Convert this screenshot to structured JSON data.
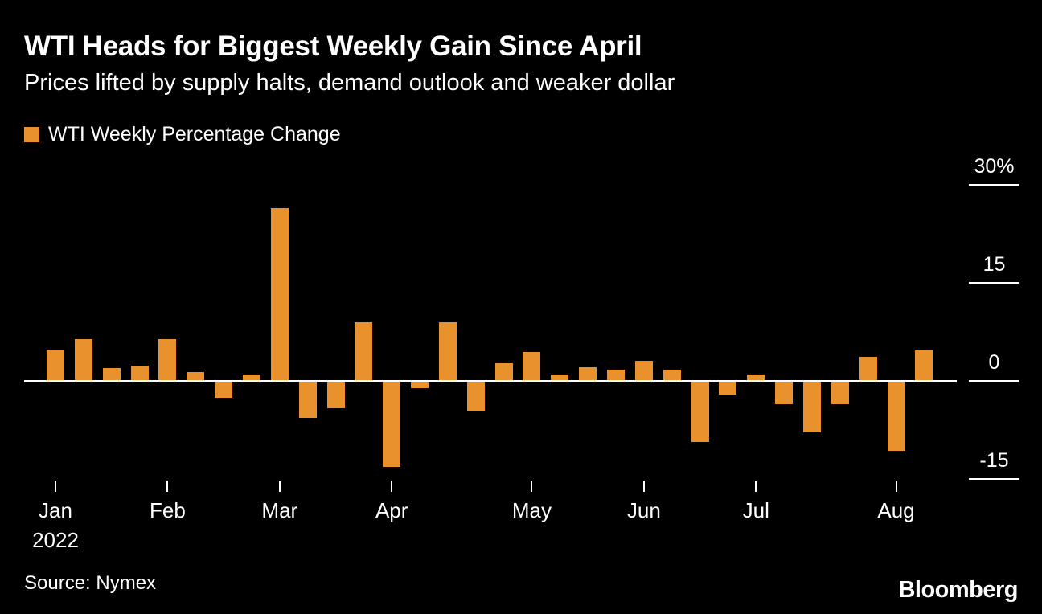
{
  "header": {
    "title": "WTI Heads for Biggest Weekly Gain Since April",
    "subtitle": "Prices lifted by supply halts, demand outlook and weaker dollar"
  },
  "legend": {
    "label": "WTI Weekly Percentage Change",
    "swatch_color": "#E8912D"
  },
  "chart_data": {
    "type": "bar",
    "title": "WTI Weekly Percentage Change",
    "unit": "percent",
    "series_name": "WTI Weekly Percentage Change",
    "values": [
      4.6,
      6.2,
      1.9,
      2.2,
      6.3,
      1.2,
      -2.4,
      0.8,
      26.3,
      -5.5,
      -4.0,
      8.8,
      -13.0,
      -1.0,
      8.8,
      -4.6,
      2.6,
      4.3,
      0.9,
      2.0,
      1.6,
      2.9,
      1.6,
      -9.2,
      -2.0,
      0.8,
      -3.4,
      -7.7,
      -3.4,
      3.5,
      -10.5,
      4.5
    ],
    "x_ticks": [
      {
        "label": "Jan",
        "sublabel": "2022",
        "week_index": 0
      },
      {
        "label": "Feb",
        "sublabel": "",
        "week_index": 4
      },
      {
        "label": "Mar",
        "sublabel": "",
        "week_index": 8
      },
      {
        "label": "Apr",
        "sublabel": "",
        "week_index": 12
      },
      {
        "label": "May",
        "sublabel": "",
        "week_index": 17
      },
      {
        "label": "Jun",
        "sublabel": "",
        "week_index": 21
      },
      {
        "label": "Jul",
        "sublabel": "",
        "week_index": 25
      },
      {
        "label": "Aug",
        "sublabel": "",
        "week_index": 30
      }
    ],
    "y_ticks": [
      {
        "label": "30%",
        "value": 30
      },
      {
        "label": "15",
        "value": 15
      },
      {
        "label": "0",
        "value": 0
      },
      {
        "label": "-15",
        "value": -15
      }
    ],
    "ylim": [
      -16,
      31
    ],
    "grid": "right-tick-segments",
    "legend_position": "top-left",
    "bar_color": "#E8912D",
    "background_color": "#000000",
    "text_color": "#FFFFFF"
  },
  "footer": {
    "source": "Source: Nymex",
    "brand": "Bloomberg"
  }
}
